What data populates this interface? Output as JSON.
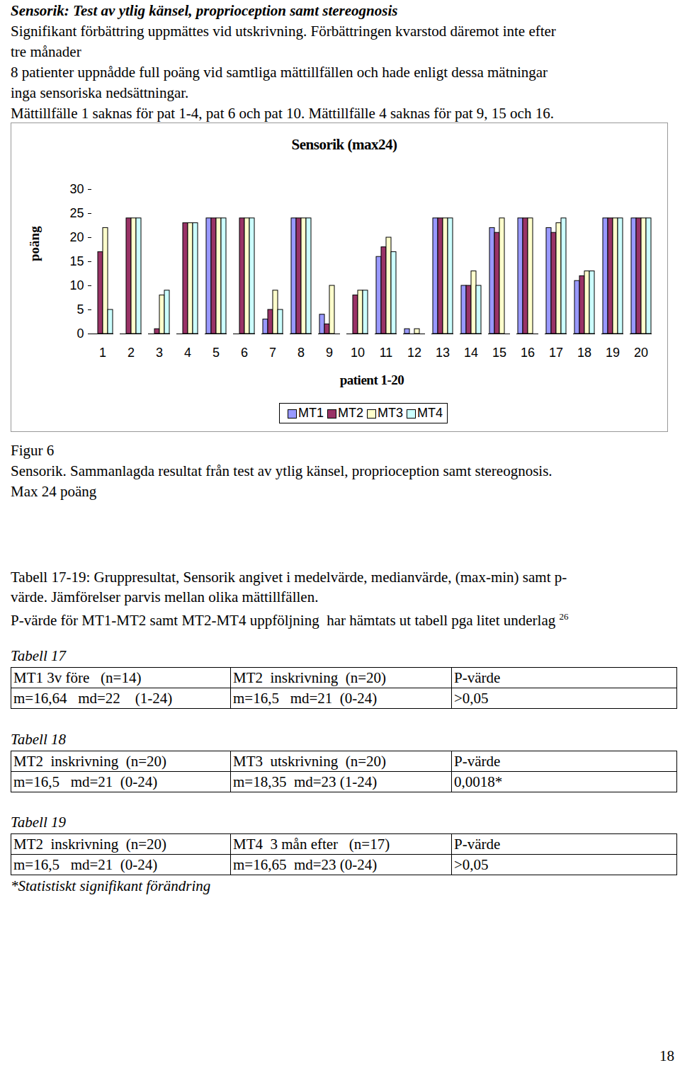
{
  "heading": "Sensorik: Test av ytlig känsel, proprioception samt stereognosis",
  "intro_lines": [
    "Signifikant förbättring uppmättes vid utskrivning. Förbättringen kvarstod däremot inte efter",
    "tre månader",
    "8 patienter uppnådde full poäng vid samtliga mättillfällen och hade enligt dessa mätningar",
    "inga sensoriska nedsättningar.",
    "Mättillfälle 1 saknas för pat 1-4, pat 6 och pat 10. Mättillfälle 4 saknas för pat 9, 15 och 16."
  ],
  "chart_data": {
    "type": "bar",
    "title": "Sensorik (max24)",
    "x_label": "patient 1-20",
    "y_label": "poäng",
    "categories": [
      "1",
      "2",
      "3",
      "4",
      "5",
      "6",
      "7",
      "8",
      "9",
      "10",
      "11",
      "12",
      "13",
      "14",
      "15",
      "16",
      "17",
      "18",
      "19",
      "20"
    ],
    "series": [
      {
        "name": "MT1",
        "color": "#9999ff",
        "values": [
          null,
          null,
          null,
          null,
          24,
          null,
          3,
          24,
          4,
          null,
          16,
          1,
          24,
          10,
          22,
          24,
          22,
          11,
          24,
          24
        ]
      },
      {
        "name": "MT2",
        "color": "#993366",
        "values": [
          17,
          24,
          1,
          23,
          24,
          24,
          5,
          24,
          2,
          8,
          18,
          0,
          24,
          10,
          21,
          24,
          21,
          12,
          24,
          24
        ]
      },
      {
        "name": "MT3",
        "color": "#ffffcc",
        "values": [
          22,
          24,
          8,
          23,
          24,
          24,
          9,
          24,
          10,
          9,
          20,
          1,
          24,
          13,
          24,
          24,
          23,
          13,
          24,
          24
        ]
      },
      {
        "name": "MT4",
        "color": "#ccffff",
        "values": [
          5,
          24,
          9,
          23,
          24,
          24,
          5,
          24,
          null,
          9,
          17,
          0,
          24,
          10,
          null,
          null,
          24,
          13,
          24,
          24
        ]
      }
    ],
    "ylim": [
      0,
      30
    ],
    "yticks": [
      0,
      5,
      10,
      15,
      20,
      25,
      30
    ],
    "grid": false,
    "legend": "bottom"
  },
  "figure_caption": [
    "Figur 6",
    "Sensorik. Sammanlagda resultat från test av ytlig känsel, proprioception samt stereognosis.",
    "Max 24 poäng"
  ],
  "tables_intro": {
    "lines": [
      "Tabell 17-19: Gruppresultat, Sensorik angivet i medelvärde, medianvärde, (max-min) samt p-",
      "värde. Jämförelser parvis mellan olika mättillfällen.",
      "P-värde för MT1-MT2 samt MT2-MT4 uppföljning  har hämtats ut tabell pga litet underlag "
    ],
    "footnote_ref": "26"
  },
  "tables": [
    {
      "title": "Tabell 17",
      "rows": [
        [
          "MT1 3v före   (n=14)",
          "MT2  inskrivning  (n=20)",
          "P-värde"
        ],
        [
          "m=16,64   md=22    (1-24)",
          "m=16,5   md=21  (0-24)",
          ">0,05"
        ]
      ]
    },
    {
      "title": "Tabell 18",
      "rows": [
        [
          "MT2  inskrivning  (n=20)",
          "MT3  utskrivning  (n=20)",
          "P-värde"
        ],
        [
          "m=16,5   md=21  (0-24)",
          "m=18,35  md=23 (1-24)",
          "0,0018*"
        ]
      ]
    },
    {
      "title": "Tabell 19",
      "rows": [
        [
          "MT2  inskrivning  (n=20)",
          "MT4  3 mån efter   (n=17)",
          "P-värde"
        ],
        [
          "m=16,5   md=21  (0-24)",
          "m=16,65  md=23 (0-24)",
          ">0,05"
        ]
      ]
    }
  ],
  "table_note": "*Statistiskt signifikant förändring",
  "page_number": "18"
}
